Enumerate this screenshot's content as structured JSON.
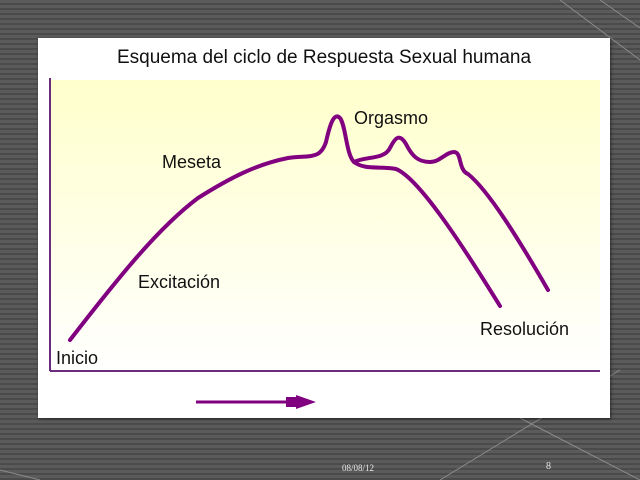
{
  "slide": {
    "title": "Esquema del ciclo de Respuesta Sexual humana",
    "date": "08/08/12",
    "page_number": "8"
  },
  "diagram": {
    "phase_labels": {
      "inicio": "Inicio",
      "excitacion": "Excitación",
      "meseta": "Meseta",
      "orgasmo": "Orgasmo",
      "resolucion": "Resolución"
    },
    "colors": {
      "curve": "#800080",
      "plot_background_top": "#ffffcc",
      "plot_background_bottom": "#ffffff",
      "slide_background": "#4f4f4f"
    }
  }
}
